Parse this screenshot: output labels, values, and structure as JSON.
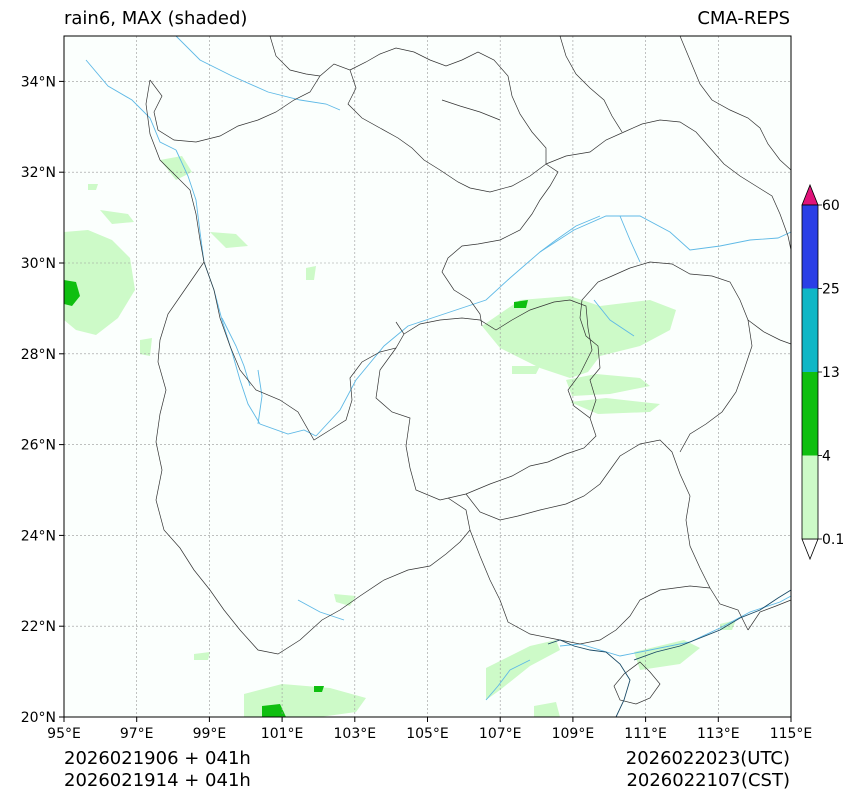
{
  "header": {
    "title_left": "rain6, MAX (shaded)",
    "title_right": "CMA-REPS"
  },
  "footer": {
    "left_line1": "2026021906  +  041h",
    "left_line2": "2026021914  +  041h",
    "right_line1": "2026022023(UTC)",
    "right_line2": "2026022107(CST)"
  },
  "map": {
    "lon_range": [
      95,
      115
    ],
    "lat_range": [
      20,
      35
    ],
    "lon_ticks": [
      "95°E",
      "97°E",
      "99°E",
      "101°E",
      "103°E",
      "105°E",
      "107°E",
      "109°E",
      "111°E",
      "113°E",
      "115°E"
    ],
    "lat_ticks": [
      "20°N",
      "22°N",
      "24°N",
      "26°N",
      "28°N",
      "30°N",
      "32°N",
      "34°N"
    ],
    "lon_tick_values": [
      95,
      97,
      99,
      101,
      103,
      105,
      107,
      109,
      111,
      113,
      115
    ],
    "lat_tick_values": [
      20,
      22,
      24,
      26,
      28,
      30,
      32,
      34
    ],
    "background_color": "#fbfffd",
    "grid_color": "#9a9a9a",
    "border_color": "#333333",
    "river_color": "#5fb9e6"
  },
  "colorbar": {
    "levels": [
      "0.1",
      "4",
      "13",
      "25",
      "60"
    ],
    "colors": [
      "#cdfac8",
      "#0fbf10",
      "#10b7c6",
      "#2b3fe6"
    ],
    "under_color": "#ffffff",
    "over_color": "#e0137a"
  },
  "rain_areas": [
    {
      "name": "east-chongqing-band",
      "lon": 108.5,
      "lat": 28.8,
      "level": 0
    },
    {
      "name": "tibet-west-patch",
      "lon": 95.8,
      "lat": 29.4,
      "level": 1
    },
    {
      "name": "south-yunnan-patch",
      "lon": 101.0,
      "lat": 20.2,
      "level": 1
    },
    {
      "name": "guangdong-coast-patch",
      "lon": 111.5,
      "lat": 21.3,
      "level": 0
    }
  ]
}
